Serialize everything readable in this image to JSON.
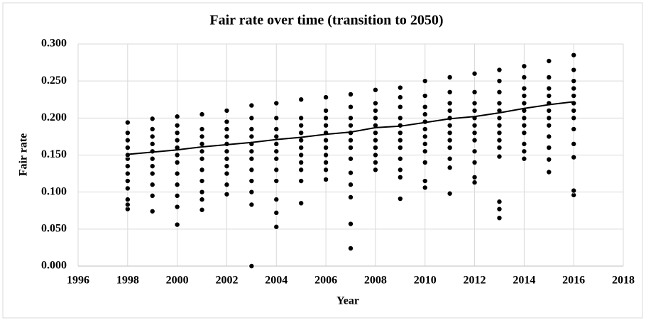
{
  "chart_data": {
    "type": "scatter",
    "title": "Fair rate over time (transition to 2050)",
    "x_label": "Year",
    "y_label": "Fair rate",
    "xlim": [
      1996,
      2018
    ],
    "xticks": [
      1996,
      1998,
      2000,
      2002,
      2004,
      2006,
      2008,
      2010,
      2012,
      2014,
      2016,
      2018
    ],
    "ylim": [
      0,
      0.3
    ],
    "yticks": [
      {
        "value": 0,
        "label": "0.000"
      },
      {
        "value": 0.05,
        "label": "0.050"
      },
      {
        "value": 0.1,
        "label": "0.100"
      },
      {
        "value": 0.15,
        "label": "0.150"
      },
      {
        "value": 0.2,
        "label": "0.200"
      },
      {
        "value": 0.25,
        "label": "0.250"
      },
      {
        "value": 0.3,
        "label": "0.300"
      }
    ],
    "grid": true,
    "series": [
      {
        "color": "#000000",
        "x": [
          1998,
          1998,
          1998,
          1998,
          1998,
          1998,
          1998,
          1998,
          1998,
          1998,
          1998,
          1998,
          1998
        ],
        "values": [
          0.077,
          0.083,
          0.09,
          0.105,
          0.115,
          0.125,
          0.135,
          0.145,
          0.15,
          0.16,
          0.17,
          0.18,
          0.194
        ]
      },
      {
        "color": "#000000",
        "x": [
          1999,
          1999,
          1999,
          1999,
          1999,
          1999,
          1999,
          1999,
          1999,
          1999,
          1999
        ],
        "values": [
          0.074,
          0.095,
          0.11,
          0.125,
          0.135,
          0.145,
          0.155,
          0.165,
          0.175,
          0.185,
          0.199
        ]
      },
      {
        "color": "#000000",
        "x": [
          2000,
          2000,
          2000,
          2000,
          2000,
          2000,
          2000,
          2000,
          2000,
          2000,
          2000,
          2000
        ],
        "values": [
          0.056,
          0.08,
          0.095,
          0.11,
          0.125,
          0.14,
          0.15,
          0.16,
          0.17,
          0.18,
          0.19,
          0.202
        ]
      },
      {
        "color": "#000000",
        "x": [
          2001,
          2001,
          2001,
          2001,
          2001,
          2001,
          2001,
          2001,
          2001,
          2001,
          2001
        ],
        "values": [
          0.076,
          0.09,
          0.1,
          0.115,
          0.13,
          0.145,
          0.155,
          0.165,
          0.175,
          0.185,
          0.205
        ]
      },
      {
        "color": "#000000",
        "x": [
          2002,
          2002,
          2002,
          2002,
          2002,
          2002,
          2002,
          2002,
          2002,
          2002,
          2002
        ],
        "values": [
          0.097,
          0.11,
          0.125,
          0.135,
          0.145,
          0.155,
          0.165,
          0.175,
          0.185,
          0.195,
          0.21
        ]
      },
      {
        "color": "#000000",
        "x": [
          2003,
          2003,
          2003,
          2003,
          2003,
          2003,
          2003,
          2003,
          2003,
          2003,
          2003,
          2003
        ],
        "values": [
          0,
          0.083,
          0.1,
          0.115,
          0.13,
          0.145,
          0.155,
          0.165,
          0.175,
          0.185,
          0.2,
          0.217
        ]
      },
      {
        "color": "#000000",
        "x": [
          2004,
          2004,
          2004,
          2004,
          2004,
          2004,
          2004,
          2004,
          2004,
          2004,
          2004,
          2004
        ],
        "values": [
          0.053,
          0.072,
          0.09,
          0.115,
          0.13,
          0.145,
          0.155,
          0.165,
          0.175,
          0.185,
          0.2,
          0.22
        ]
      },
      {
        "color": "#000000",
        "x": [
          2005,
          2005,
          2005,
          2005,
          2005,
          2005,
          2005,
          2005,
          2005,
          2005,
          2005
        ],
        "values": [
          0.085,
          0.115,
          0.13,
          0.14,
          0.15,
          0.16,
          0.17,
          0.18,
          0.19,
          0.2,
          0.225
        ]
      },
      {
        "color": "#000000",
        "x": [
          2006,
          2006,
          2006,
          2006,
          2006,
          2006,
          2006,
          2006,
          2006,
          2006,
          2006
        ],
        "values": [
          0.117,
          0.13,
          0.14,
          0.15,
          0.16,
          0.17,
          0.18,
          0.19,
          0.2,
          0.21,
          0.228
        ]
      },
      {
        "color": "#000000",
        "x": [
          2007,
          2007,
          2007,
          2007,
          2007,
          2007,
          2007,
          2007,
          2007,
          2007,
          2007,
          2007,
          2007
        ],
        "values": [
          0.024,
          0.057,
          0.093,
          0.11,
          0.126,
          0.145,
          0.16,
          0.17,
          0.18,
          0.19,
          0.2,
          0.215,
          0.232
        ]
      },
      {
        "color": "#000000",
        "x": [
          2008,
          2008,
          2008,
          2008,
          2008,
          2008,
          2008,
          2008,
          2008,
          2008,
          2008
        ],
        "values": [
          0.13,
          0.14,
          0.15,
          0.16,
          0.17,
          0.18,
          0.19,
          0.2,
          0.21,
          0.22,
          0.238
        ]
      },
      {
        "color": "#000000",
        "x": [
          2009,
          2009,
          2009,
          2009,
          2009,
          2009,
          2009,
          2009,
          2009,
          2009,
          2009,
          2009
        ],
        "values": [
          0.091,
          0.12,
          0.13,
          0.145,
          0.16,
          0.17,
          0.18,
          0.19,
          0.2,
          0.215,
          0.228,
          0.241
        ]
      },
      {
        "color": "#000000",
        "x": [
          2010,
          2010,
          2010,
          2010,
          2010,
          2010,
          2010,
          2010,
          2010,
          2010,
          2010,
          2010
        ],
        "values": [
          0.106,
          0.115,
          0.14,
          0.155,
          0.165,
          0.175,
          0.185,
          0.195,
          0.205,
          0.215,
          0.23,
          0.25
        ]
      },
      {
        "color": "#000000",
        "x": [
          2011,
          2011,
          2011,
          2011,
          2011,
          2011,
          2011,
          2011,
          2011,
          2011,
          2011,
          2011
        ],
        "values": [
          0.098,
          0.133,
          0.145,
          0.16,
          0.17,
          0.18,
          0.19,
          0.2,
          0.21,
          0.22,
          0.235,
          0.255
        ]
      },
      {
        "color": "#000000",
        "x": [
          2012,
          2012,
          2012,
          2012,
          2012,
          2012,
          2012,
          2012,
          2012,
          2012,
          2012,
          2012
        ],
        "values": [
          0.113,
          0.12,
          0.14,
          0.155,
          0.17,
          0.18,
          0.19,
          0.2,
          0.21,
          0.22,
          0.235,
          0.26
        ]
      },
      {
        "color": "#000000",
        "x": [
          2013,
          2013,
          2013,
          2013,
          2013,
          2013,
          2013,
          2013,
          2013,
          2013,
          2013,
          2013,
          2013,
          2013
        ],
        "values": [
          0.065,
          0.077,
          0.087,
          0.148,
          0.16,
          0.17,
          0.18,
          0.19,
          0.2,
          0.21,
          0.22,
          0.235,
          0.25,
          0.265
        ]
      },
      {
        "color": "#000000",
        "x": [
          2014,
          2014,
          2014,
          2014,
          2014,
          2014,
          2014,
          2014,
          2014,
          2014,
          2014,
          2014
        ],
        "values": [
          0.145,
          0.155,
          0.165,
          0.18,
          0.19,
          0.2,
          0.21,
          0.22,
          0.23,
          0.24,
          0.255,
          0.27
        ]
      },
      {
        "color": "#000000",
        "x": [
          2015,
          2015,
          2015,
          2015,
          2015,
          2015,
          2015,
          2015,
          2015,
          2015,
          2015,
          2015
        ],
        "values": [
          0.127,
          0.144,
          0.16,
          0.175,
          0.19,
          0.2,
          0.21,
          0.22,
          0.23,
          0.24,
          0.255,
          0.277
        ]
      },
      {
        "color": "#000000",
        "x": [
          2016,
          2016,
          2016,
          2016,
          2016,
          2016,
          2016,
          2016,
          2016,
          2016,
          2016,
          2016,
          2016
        ],
        "values": [
          0.096,
          0.102,
          0.147,
          0.165,
          0.185,
          0.2,
          0.21,
          0.22,
          0.23,
          0.24,
          0.25,
          0.265,
          0.285
        ]
      },
      {
        "color": "#000000",
        "type": "line",
        "x": [
          1998,
          1999,
          2000,
          2001,
          2002,
          2003,
          2004,
          2005,
          2006,
          2007,
          2008,
          2009,
          2010,
          2011,
          2012,
          2013,
          2014,
          2015,
          2016
        ],
        "values": [
          0.151,
          0.154,
          0.157,
          0.161,
          0.164,
          0.167,
          0.171,
          0.174,
          0.178,
          0.181,
          0.187,
          0.189,
          0.194,
          0.199,
          0.202,
          0.207,
          0.213,
          0.218,
          0.222
        ]
      }
    ]
  }
}
